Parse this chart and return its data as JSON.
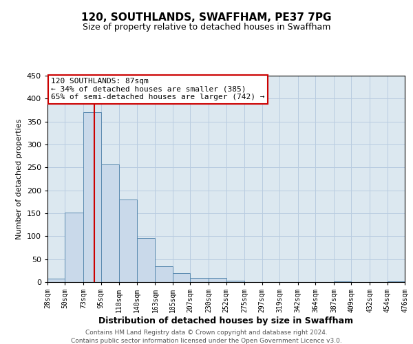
{
  "title": "120, SOUTHLANDS, SWAFFHAM, PE37 7PG",
  "subtitle": "Size of property relative to detached houses in Swaffham",
  "bar_xlabel": "Distribution of detached houses by size in Swaffham",
  "ylabel": "Number of detached properties",
  "bin_edges": [
    28,
    50,
    73,
    95,
    118,
    140,
    163,
    185,
    207,
    230,
    252,
    275,
    297,
    319,
    342,
    364,
    387,
    409,
    432,
    454,
    476
  ],
  "bar_heights": [
    7,
    152,
    370,
    256,
    180,
    96,
    34,
    20,
    9,
    9,
    3,
    0,
    0,
    0,
    0,
    0,
    1,
    0,
    0,
    1
  ],
  "bar_color": "#c9d9ea",
  "bar_edge_color": "#5a8ab0",
  "grid_color": "#b8cce0",
  "plot_bg_color": "#dce8f0",
  "fig_bg_color": "#ffffff",
  "property_size": 87,
  "vline_color": "#cc0000",
  "annotation_text": "120 SOUTHLANDS: 87sqm\n← 34% of detached houses are smaller (385)\n65% of semi-detached houses are larger (742) →",
  "annotation_box_color": "#ffffff",
  "annotation_box_edge": "#cc0000",
  "ylim": [
    0,
    450
  ],
  "footer1": "Contains HM Land Registry data © Crown copyright and database right 2024.",
  "footer2": "Contains public sector information licensed under the Open Government Licence v3.0.",
  "tick_labels": [
    "28sqm",
    "50sqm",
    "73sqm",
    "95sqm",
    "118sqm",
    "140sqm",
    "163sqm",
    "185sqm",
    "207sqm",
    "230sqm",
    "252sqm",
    "275sqm",
    "297sqm",
    "319sqm",
    "342sqm",
    "364sqm",
    "387sqm",
    "409sqm",
    "432sqm",
    "454sqm",
    "476sqm"
  ],
  "title_fontsize": 11,
  "subtitle_fontsize": 9,
  "xlabel_fontsize": 9,
  "ylabel_fontsize": 8,
  "tick_fontsize": 7,
  "annotation_fontsize": 8,
  "footer_fontsize": 6.5
}
